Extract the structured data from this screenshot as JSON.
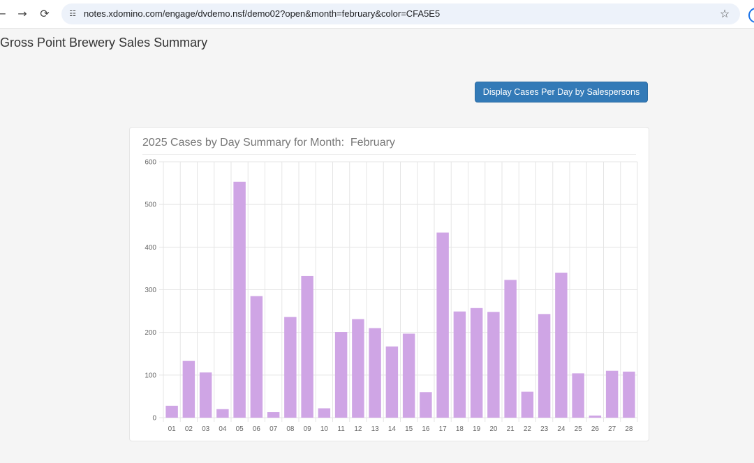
{
  "browser": {
    "url": "notes.xdomino.com/engage/dvdemo.nsf/demo02?open&month=february&color=CFA5E5",
    "back_icon": "←",
    "forward_icon": "→",
    "reload_icon": "⟳",
    "site_info_icon": "☷",
    "star_icon": "☆"
  },
  "page": {
    "title": "Gross Point Brewery Sales Summary",
    "button_label": "Display Cases Per Day by Salespersons"
  },
  "chart_data": {
    "type": "bar",
    "title": "2025 Cases by Day Summary for Month:  February",
    "categories": [
      "01",
      "02",
      "03",
      "04",
      "05",
      "06",
      "07",
      "08",
      "09",
      "10",
      "11",
      "12",
      "13",
      "14",
      "15",
      "16",
      "17",
      "18",
      "19",
      "20",
      "21",
      "22",
      "23",
      "24",
      "25",
      "26",
      "27",
      "28"
    ],
    "values": [
      28,
      133,
      106,
      20,
      553,
      285,
      13,
      236,
      332,
      22,
      201,
      231,
      210,
      167,
      197,
      60,
      434,
      249,
      257,
      248,
      323,
      61,
      243,
      340,
      104,
      5,
      110,
      108
    ],
    "ylim": [
      0,
      600
    ],
    "yticks": [
      0,
      100,
      200,
      300,
      400,
      500,
      600
    ],
    "bar_color": "#CFA5E5",
    "grid": true
  }
}
